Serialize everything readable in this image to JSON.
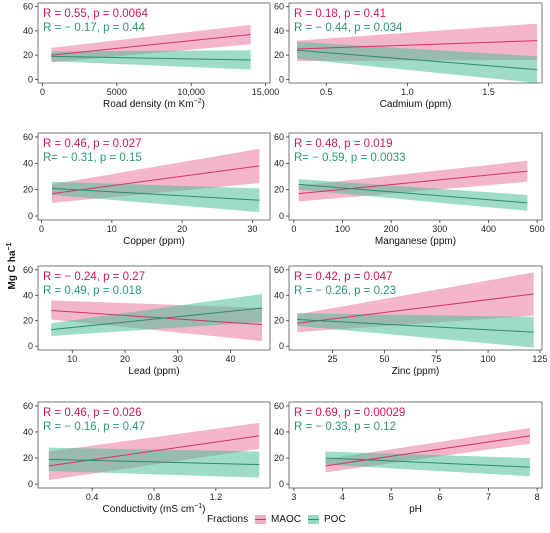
{
  "figure": {
    "y_axis_label": "Mg C ha",
    "y_axis_label_sup": "−1",
    "legend_title": "Fractions",
    "legend_items": [
      {
        "name": "MAOC",
        "color": "#d6336c",
        "fill": "#e8799d"
      },
      {
        "name": "POC",
        "color": "#2e8b6e",
        "fill": "#4fbf97"
      }
    ]
  },
  "chart_data": [
    {
      "type": "line",
      "xlabel": "Road density (m Km",
      "xlabel_sup": "−2",
      "xlabel_tail": ")",
      "xlim": [
        -300,
        15300
      ],
      "xticks": [
        0,
        5000,
        10000,
        15000
      ],
      "xtick_labels": [
        "0",
        "5000",
        "10,000",
        "15,000"
      ],
      "ylim": [
        -3,
        63
      ],
      "yticks": [
        0,
        20,
        40,
        60
      ],
      "series": [
        {
          "name": "MAOC",
          "stat": "R = 0.55, p = 0.0064",
          "x": [
            600,
            14000
          ],
          "y": [
            20,
            37
          ],
          "lo": [
            14,
            29
          ],
          "hi": [
            26,
            45
          ]
        },
        {
          "name": "POC",
          "stat": "R = − 0.17, p = 0.44",
          "x": [
            600,
            14000
          ],
          "y": [
            19,
            16
          ],
          "lo": [
            15,
            8
          ],
          "hi": [
            23,
            24
          ]
        }
      ]
    },
    {
      "type": "line",
      "xlabel": "Cadmium (ppm)",
      "xlim": [
        0.27,
        1.83
      ],
      "xticks": [
        0.5,
        1.0,
        1.5
      ],
      "xtick_labels": [
        "0.5",
        "1.0",
        "1.5"
      ],
      "ylim": [
        -3,
        63
      ],
      "yticks": [
        0,
        20,
        40,
        60
      ],
      "series": [
        {
          "name": "MAOC",
          "stat": "R = 0.18, p = 0.41",
          "x": [
            0.32,
            1.8
          ],
          "y": [
            25,
            32
          ],
          "lo": [
            15,
            16
          ],
          "hi": [
            32,
            46
          ]
        },
        {
          "name": "POC",
          "stat": "R = − 0.44, p = 0.034",
          "x": [
            0.32,
            1.8
          ],
          "y": [
            24,
            8
          ],
          "lo": [
            17,
            -3
          ],
          "hi": [
            31,
            19
          ]
        }
      ]
    },
    {
      "type": "line",
      "xlabel": "Copper (ppm)",
      "xlim": [
        -0.5,
        32.5
      ],
      "xticks": [
        0,
        10,
        20,
        30
      ],
      "xtick_labels": [
        "0",
        "10",
        "20",
        "30"
      ],
      "ylim": [
        -3,
        63
      ],
      "yticks": [
        0,
        20,
        40,
        60
      ],
      "series": [
        {
          "name": "MAOC",
          "stat": "R = 0.46, p = 0.027",
          "x": [
            1.5,
            31
          ],
          "y": [
            17,
            38
          ],
          "lo": [
            10,
            25
          ],
          "hi": [
            24,
            51
          ]
        },
        {
          "name": "POC",
          "stat": "R= − 0.31, p = 0.15",
          "x": [
            1.5,
            31
          ],
          "y": [
            21,
            12
          ],
          "lo": [
            16,
            3
          ],
          "hi": [
            26,
            21
          ]
        }
      ]
    },
    {
      "type": "line",
      "xlabel": "Manganese (ppm)",
      "xlim": [
        -10,
        510
      ],
      "xticks": [
        0,
        100,
        200,
        300,
        400,
        500
      ],
      "xtick_labels": [
        "0",
        "100",
        "200",
        "300",
        "400",
        "500"
      ],
      "ylim": [
        -3,
        63
      ],
      "yticks": [
        0,
        20,
        40,
        60
      ],
      "series": [
        {
          "name": "MAOC",
          "stat": "R = 0.48, p = 0.019",
          "x": [
            10,
            480
          ],
          "y": [
            17,
            34
          ],
          "lo": [
            11,
            26
          ],
          "hi": [
            23,
            42
          ]
        },
        {
          "name": "POC",
          "stat": "R= − 0.59, p = 0.0033",
          "x": [
            10,
            480
          ],
          "y": [
            24,
            10
          ],
          "lo": [
            20,
            4
          ],
          "hi": [
            28,
            16
          ]
        }
      ]
    },
    {
      "type": "line",
      "xlabel": "Lead (ppm)",
      "xlim": [
        3.5,
        47.5
      ],
      "xticks": [
        10,
        20,
        30,
        40
      ],
      "xtick_labels": [
        "10",
        "20",
        "30",
        "40"
      ],
      "ylim": [
        -3,
        63
      ],
      "yticks": [
        0,
        20,
        40,
        60
      ],
      "series": [
        {
          "name": "MAOC",
          "stat": "R = − 0.24, p = 0.27",
          "x": [
            6,
            46
          ],
          "y": [
            28,
            17
          ],
          "lo": [
            21,
            4
          ],
          "hi": [
            36,
            30
          ]
        },
        {
          "name": "POC",
          "stat": "R = 0.49, p = 0.018",
          "x": [
            6,
            46
          ],
          "y": [
            13,
            30
          ],
          "lo": [
            8,
            19
          ],
          "hi": [
            18,
            41
          ]
        }
      ]
    },
    {
      "type": "line",
      "xlabel": "Zinc (ppm)",
      "xlim": [
        4,
        126
      ],
      "xticks": [
        25,
        50,
        75,
        100,
        125
      ],
      "xtick_labels": [
        "25",
        "50",
        "75",
        "100",
        "125"
      ],
      "ylim": [
        -3,
        63
      ],
      "yticks": [
        0,
        20,
        40,
        60
      ],
      "series": [
        {
          "name": "MAOC",
          "stat": "R = 0.42, p = 0.047",
          "x": [
            8,
            122
          ],
          "y": [
            18,
            41
          ],
          "lo": [
            11,
            24
          ],
          "hi": [
            25,
            58
          ]
        },
        {
          "name": "POC",
          "stat": "R = − 0.26, p = 0.23",
          "x": [
            8,
            122
          ],
          "y": [
            21,
            11
          ],
          "lo": [
            16,
            -1
          ],
          "hi": [
            26,
            23
          ]
        }
      ]
    },
    {
      "type": "line",
      "xlabel": "Conductivity (mS cm",
      "xlabel_sup": "−1",
      "xlabel_tail": ")",
      "xlim": [
        0.05,
        1.55
      ],
      "xticks": [
        0.4,
        0.8,
        1.2
      ],
      "xtick_labels": [
        "0.4",
        "0.8",
        "1.2"
      ],
      "ylim": [
        -3,
        63
      ],
      "yticks": [
        0,
        20,
        40,
        60
      ],
      "series": [
        {
          "name": "MAOC",
          "stat": "R = 0.46, p = 0.026",
          "x": [
            0.12,
            1.48
          ],
          "y": [
            14,
            37
          ],
          "lo": [
            3,
            27
          ],
          "hi": [
            25,
            47
          ]
        },
        {
          "name": "POC",
          "stat": "R = − 0.16, p = 0.47",
          "x": [
            0.12,
            1.48
          ],
          "y": [
            19,
            15
          ],
          "lo": [
            10,
            5
          ],
          "hi": [
            28,
            25
          ]
        }
      ]
    },
    {
      "type": "line",
      "xlabel": "pH",
      "xlim": [
        2.9,
        8.1
      ],
      "xticks": [
        3,
        4,
        5,
        6,
        7,
        8
      ],
      "xtick_labels": [
        "3",
        "4",
        "5",
        "6",
        "7",
        "8"
      ],
      "ylim": [
        -3,
        63
      ],
      "yticks": [
        0,
        20,
        40,
        60
      ],
      "series": [
        {
          "name": "MAOC",
          "stat": "R = 0.69, p = 0.00029",
          "x": [
            3.65,
            7.85
          ],
          "y": [
            14,
            37
          ],
          "lo": [
            9,
            31
          ],
          "hi": [
            19,
            43
          ]
        },
        {
          "name": "POC",
          "stat": "R = − 0.33, p = 0.12",
          "x": [
            3.65,
            7.85
          ],
          "y": [
            20,
            13
          ],
          "lo": [
            15,
            6
          ],
          "hi": [
            25,
            20
          ]
        }
      ]
    }
  ]
}
